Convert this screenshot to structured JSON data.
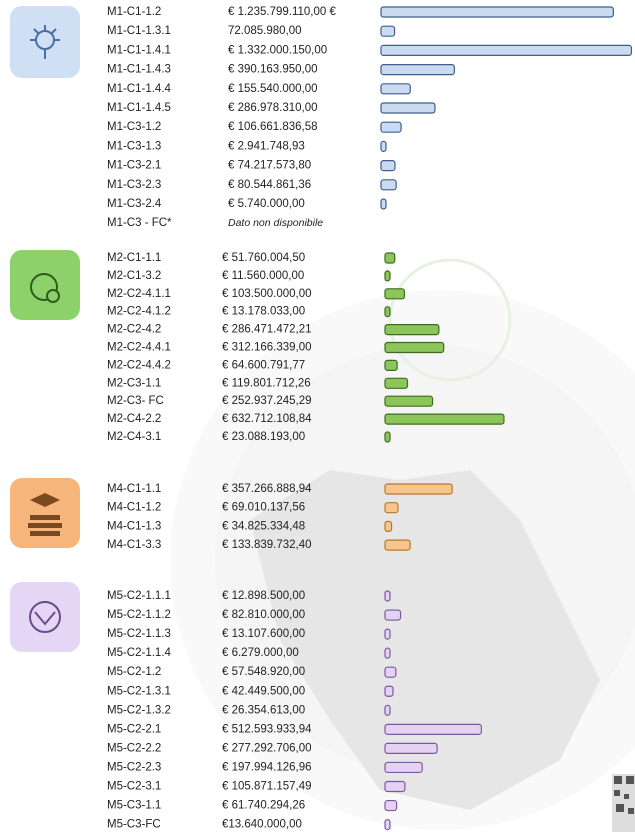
{
  "chart_data": [
    {
      "type": "bar",
      "orientation": "horizontal",
      "color": "#c9daf1",
      "edgecolor": "#3f5f8a",
      "categories": [
        "M1-C1-1.2",
        "M1-C1-1.3.1",
        "M1-C1-1.4.1",
        "M1-C1-1.4.3",
        "M1-C1-1.4.4",
        "M1-C1-1.4.5",
        "M1-C3-1.2",
        "M1-C3-1.3",
        "M1-C3-2.1",
        "M1-C3-2.3",
        "M1-C3-2.4",
        "M1-C3 - FC*"
      ],
      "values": [
        1235799110,
        72085980,
        1332000150,
        390163950,
        155540000,
        286978310,
        106661836.58,
        2941748.93,
        74217573.8,
        80544861.36,
        5740000,
        null
      ],
      "value_labels": [
        "€ 1.235.799.110,00  €",
        "72.085.980,00",
        "€ 1.332.000.150,00",
        "€ 390.163.950,00",
        "€ 155.540.000,00",
        "€ 286.978.310,00",
        "€ 106.661.836,58",
        "€ 2.941.748,93",
        "€ 74.217.573,80",
        "€ 80.544.861,36",
        "€ 5.740.000,00",
        "Dato non disponibile"
      ]
    },
    {
      "type": "bar",
      "orientation": "horizontal",
      "color": "#8cc65a",
      "edgecolor": "#3e6b1e",
      "categories": [
        "M2-C1-1.1",
        "M2-C1-3.2",
        "M2-C2-4.1.1",
        "M2-C2-4.1.2",
        "M2-C2-4.2",
        "M2-C2-4.4.1",
        "M2-C2-4.4.2",
        "M2-C3-1.1",
        "M2-C3- FC",
        "M2-C4-2.2",
        "M2-C4-3.1"
      ],
      "values": [
        51760004.5,
        11560000,
        103500000,
        13178033,
        286471472.21,
        312166339,
        64600791.77,
        119801712.26,
        252937245.29,
        632712108.84,
        23088193
      ],
      "value_labels": [
        "€ 51.760.004,50",
        "€ 11.560.000,00",
        "€ 103.500.000,00",
        "€ 13.178.033,00",
        "€ 286.471.472,21",
        "€ 312.166.339,00",
        "€ 64.600.791,77",
        "€ 119.801.712,26",
        "€ 252.937.245,29",
        "€ 632.712.108,84",
        "€ 23.088.193,00"
      ]
    },
    {
      "type": "bar",
      "orientation": "horizontal",
      "color": "#f7c58d",
      "edgecolor": "#b8782c",
      "categories": [
        "M4-C1-1.1",
        "M4-C1-1.2",
        "M4-C1-1.3",
        "M4-C1-3.3"
      ],
      "values": [
        357266888.94,
        69010137.56,
        34825334.48,
        133839732.4
      ],
      "value_labels": [
        "€ 357.266.888,94",
        "€ 69.010.137,56",
        "€ 34.825.334,48",
        "€ 133.839.732,40"
      ]
    },
    {
      "type": "bar",
      "orientation": "horizontal",
      "color": "#e3d2f3",
      "edgecolor": "#7b5a9c",
      "categories": [
        "M5-C2-1.1.1",
        "M5-C2-1.1.2",
        "M5-C2-1.1.3",
        "M5-C2-1.1.4",
        "M5-C2-1.2",
        "M5-C2-1.3.1",
        "M5-C2-1.3.2",
        "M5-C2-2.1",
        "M5-C2-2.2",
        "M5-C2-2.3",
        "M5-C2-3.1",
        "M5-C3-1.1",
        "M5-C3-FC"
      ],
      "values": [
        12898500,
        82810000,
        13107600,
        6279000,
        57548920,
        42449500,
        26354613,
        512593933.94,
        277292706,
        197994126.96,
        105871157.49,
        61740294.26,
        13640000
      ],
      "value_labels": [
        "€ 12.898.500,00",
        "€ 82.810.000,00",
        "€ 13.107.600,00",
        "€ 6.279.000,00",
        "€ 57.548.920,00",
        "€ 42.449.500,00",
        "€ 26.354.613,00",
        "€ 512.593.933,94",
        "€ 277.292.706,00",
        "€ 197.994.126,96",
        "€ 105.871.157,49",
        "€ 61.740.294,26",
        "€13.640.000,00"
      ]
    }
  ]
}
